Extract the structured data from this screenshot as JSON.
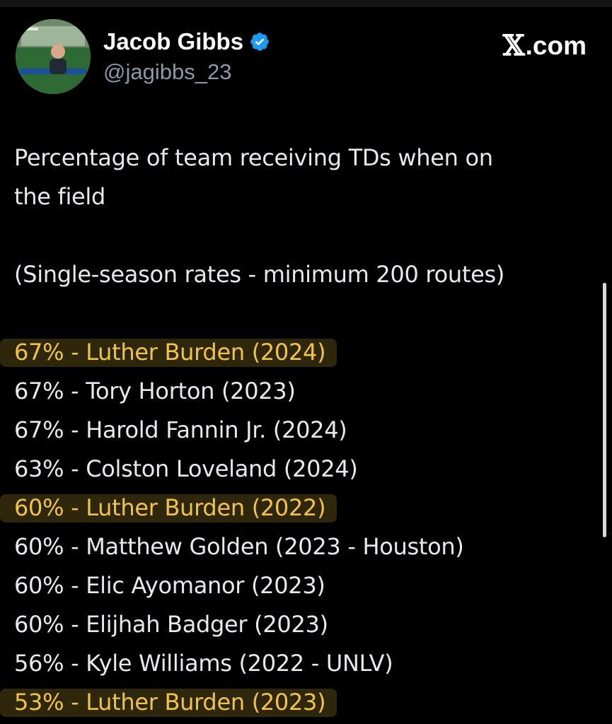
{
  "author": {
    "name": "Jacob Gibbs",
    "handle": "@jagibbs_23",
    "verified": true
  },
  "brand": {
    "x_glyph": "𝕏",
    "suffix": ".com"
  },
  "tweet": {
    "line1": "Percentage of team receiving TDs when on",
    "line2": "the field",
    "line3": "(Single-season rates - minimum 200 routes)",
    "rows": [
      {
        "text": "67% - Luther Burden (2024)",
        "highlight": true
      },
      {
        "text": "67% - Tory Horton (2023)",
        "highlight": false
      },
      {
        "text": "67% - Harold Fannin Jr. (2024)",
        "highlight": false
      },
      {
        "text": "63% - Colston Loveland (2024)",
        "highlight": false
      },
      {
        "text": "60% - Luther Burden (2022)",
        "highlight": true
      },
      {
        "text": "60% - Matthew Golden (2023 - Houston)",
        "highlight": false
      },
      {
        "text": "60% - Elic Ayomanor (2023)",
        "highlight": false
      },
      {
        "text": "60% - Elijhah Badger (2023)",
        "highlight": false
      },
      {
        "text": "56% - Kyle Williams (2022 - UNLV)",
        "highlight": false
      },
      {
        "text": "53% - Luther Burden (2023)",
        "highlight": true
      }
    ]
  },
  "colors": {
    "background": "#000000",
    "text": "#e7e9ea",
    "secondary": "#8b98a5",
    "highlight_text": "#f2c34a",
    "verified_badge": "#1d9bf0"
  }
}
